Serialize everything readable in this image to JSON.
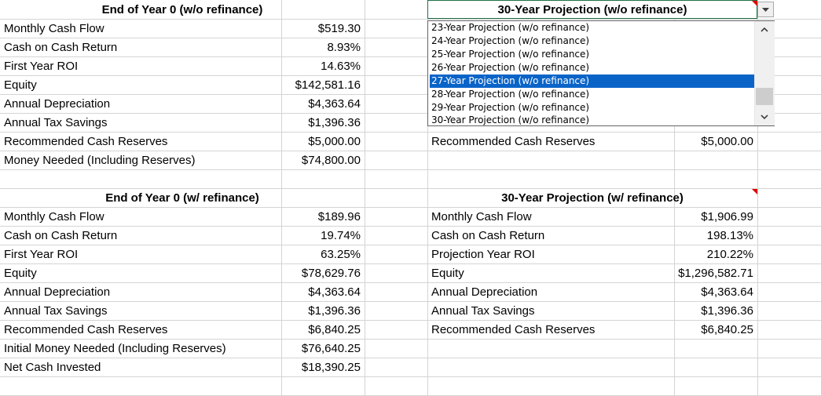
{
  "left_top": {
    "header": "End of Year 0 (w/o refinance)",
    "rows": [
      {
        "label": "Monthly Cash Flow",
        "value": "$519.30"
      },
      {
        "label": "Cash on Cash Return",
        "value": "8.93%"
      },
      {
        "label": "First Year ROI",
        "value": "14.63%"
      },
      {
        "label": "Equity",
        "value": "$142,581.16"
      },
      {
        "label": "Annual Depreciation",
        "value": "$4,363.64"
      },
      {
        "label": "Annual Tax Savings",
        "value": "$1,396.36"
      },
      {
        "label": "Recommended Cash Reserves",
        "value": "$5,000.00"
      },
      {
        "label": "Money Needed (Including Reserves)",
        "value": "$74,800.00"
      }
    ]
  },
  "right_top": {
    "header": "30-Year Projection (w/o refinance)",
    "rows": [
      {
        "label": "Recommended Cash Reserves",
        "value": "$5,000.00"
      }
    ]
  },
  "dropdown": {
    "options": [
      "23-Year Projection (w/o refinance)",
      "24-Year Projection (w/o refinance)",
      "25-Year Projection (w/o refinance)",
      "26-Year Projection (w/o refinance)",
      "27-Year Projection (w/o refinance)",
      "28-Year Projection (w/o refinance)",
      "29-Year Projection (w/o refinance)",
      "30-Year Projection (w/o refinance)"
    ],
    "selected_index": 4
  },
  "left_bottom": {
    "header": "End of Year 0 (w/ refinance)",
    "rows": [
      {
        "label": "Monthly Cash Flow",
        "value": "$189.96"
      },
      {
        "label": "Cash on Cash Return",
        "value": "19.74%"
      },
      {
        "label": "First Year ROI",
        "value": "63.25%"
      },
      {
        "label": "Equity",
        "value": "$78,629.76"
      },
      {
        "label": "Annual Depreciation",
        "value": "$4,363.64"
      },
      {
        "label": "Annual Tax Savings",
        "value": "$1,396.36"
      },
      {
        "label": "Recommended Cash Reserves",
        "value": "$6,840.25"
      },
      {
        "label": "Initial Money Needed (Including Reserves)",
        "value": "$76,640.25"
      },
      {
        "label": "Net Cash Invested",
        "value": "$18,390.25"
      }
    ]
  },
  "right_bottom": {
    "header": "30-Year Projection (w/ refinance)",
    "rows": [
      {
        "label": "Monthly Cash Flow",
        "value": "$1,906.99"
      },
      {
        "label": "Cash on Cash Return",
        "value": "198.13%"
      },
      {
        "label": "Projection Year ROI",
        "value": "210.22%"
      },
      {
        "label": "Equity",
        "value": "$1,296,582.71"
      },
      {
        "label": "Annual Depreciation",
        "value": "$4,363.64"
      },
      {
        "label": "Annual Tax Savings",
        "value": "$1,396.36"
      },
      {
        "label": "Recommended Cash Reserves",
        "value": "$6,840.25"
      }
    ]
  },
  "colors": {
    "gridline": "#d4d4d4",
    "selection": "#0a64c8",
    "active_border": "#1e7145",
    "comment_marker": "#e00000"
  },
  "icons": [
    "dropdown-arrow-icon",
    "scroll-up-icon",
    "scroll-down-icon"
  ]
}
